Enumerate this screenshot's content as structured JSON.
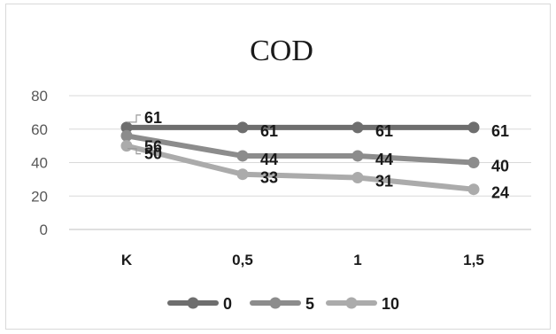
{
  "chart_data": {
    "type": "line",
    "title": "COD",
    "categories": [
      "K",
      "0,5",
      "1",
      "1,5"
    ],
    "ylim": [
      0,
      80
    ],
    "yticks": [
      0,
      20,
      40,
      60,
      80
    ],
    "grid": true,
    "legend_position": "bottom",
    "series": [
      {
        "name": "0",
        "values": [
          61,
          61,
          61,
          61
        ],
        "labels": [
          "61",
          "61",
          "61",
          "61"
        ],
        "color": "#6e6e6e"
      },
      {
        "name": "5",
        "values": [
          56,
          44,
          44,
          40
        ],
        "labels": [
          "56",
          "44",
          "44",
          "40"
        ],
        "color": "#8c8c8c"
      },
      {
        "name": "10",
        "values": [
          50,
          33,
          31,
          24
        ],
        "labels": [
          "50",
          "33",
          "31",
          "24"
        ],
        "color": "#ababab"
      }
    ]
  }
}
